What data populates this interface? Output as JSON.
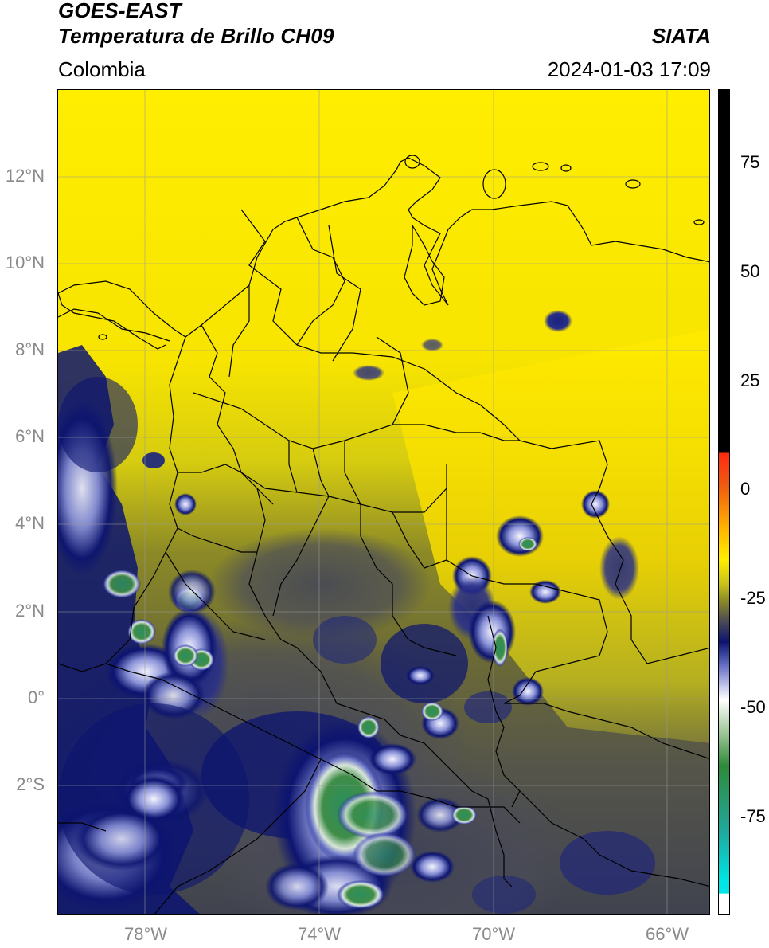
{
  "header": {
    "title_line1": "GOES-EAST",
    "title_line2": "Temperatura de Brillo CH09",
    "region": "Colombia",
    "organization": "SIATA",
    "timestamp": "2024-01-03 17:09"
  },
  "map": {
    "lat_ticks": [
      "12°N",
      "10°N",
      "8°N",
      "6°N",
      "4°N",
      "2°N",
      "0°",
      "2°S"
    ],
    "lon_ticks": [
      "78°W",
      "74°W",
      "70°W",
      "66°W"
    ],
    "lat_range": [
      -5,
      14
    ],
    "lon_range": [
      -80,
      -65
    ],
    "gridlines": true
  },
  "colorbar": {
    "tick_labels": [
      "75",
      "50",
      "25",
      "0",
      "-25",
      "-50",
      "-75"
    ],
    "range": [
      -95,
      90
    ],
    "colors": {
      "black": "#000000",
      "red": "#e8261b",
      "orange": "#f39a00",
      "yellow": "#ffee00",
      "olive": "#8c8a26",
      "gray": "#4a4a55",
      "navy": "#0c1470",
      "white": "#ffffff",
      "green": "#2f8a3a",
      "teal": "#1fa89c",
      "cyan": "#00e5e5"
    }
  }
}
